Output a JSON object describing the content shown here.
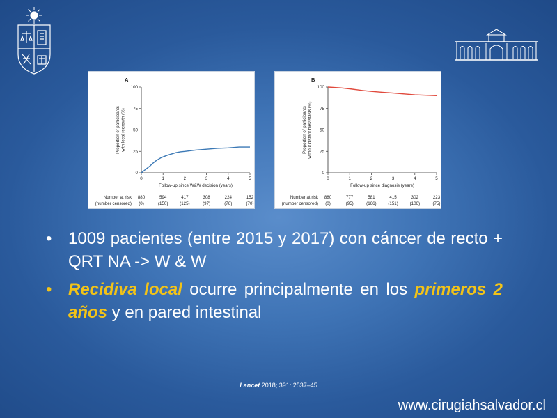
{
  "slide": {
    "bullets": [
      {
        "text": "1009 pacientes (entre 2015 y 2017) con cáncer de recto + QRT NA -> W & W"
      },
      {
        "h1": "Recidiva local",
        "t1": " ocurre principalmente en los ",
        "h2": "primeros 2 años",
        "t2": " y en pared intestinal"
      }
    ],
    "citation": {
      "journal": "Lancet",
      "rest": " 2018; 391: 2537–45"
    },
    "website": "www.cirugiahsalvador.cl",
    "bullet_char": "•"
  },
  "colors": {
    "highlight": "#f2c318",
    "line_a": "#3a78b5",
    "line_b": "#e0493c"
  },
  "chart_data": [
    {
      "type": "line",
      "panel": "A",
      "ylabel_lines": [
        "Proportion of participants",
        "with local regrowth (%)"
      ],
      "xlabel": "Follow-up since W&W decision (years)",
      "xlim": [
        0,
        5
      ],
      "ylim": [
        0,
        100
      ],
      "x_ticks": [
        0,
        1,
        2,
        3,
        4,
        5
      ],
      "y_ticks": [
        0,
        25,
        50,
        75,
        100
      ],
      "series": [
        {
          "x": [
            0,
            0.05,
            0.1,
            0.2,
            0.3,
            0.4,
            0.5,
            0.6,
            0.7,
            0.8,
            0.9,
            1.0,
            1.2,
            1.4,
            1.6,
            1.8,
            2.0,
            2.5,
            3.0,
            3.5,
            4.0,
            4.5,
            5.0
          ],
          "y": [
            0,
            1,
            2,
            4,
            6,
            8,
            10.5,
            12.5,
            14.5,
            16,
            17.5,
            18.5,
            20.5,
            22,
            23.5,
            24.5,
            25,
            26.5,
            27.5,
            28.5,
            29,
            30,
            30
          ]
        }
      ],
      "risk_table": {
        "label_lines": [
          "Number at risk",
          "(number censored)"
        ],
        "at_risk": [
          "880",
          "594",
          "417",
          "308",
          "224",
          "152"
        ],
        "censored": [
          "(0)",
          "(150)",
          "(125)",
          "(97)",
          "(76)",
          "(70)"
        ]
      }
    },
    {
      "type": "line",
      "panel": "B",
      "ylabel_lines": [
        "Proportion of participants",
        "without distant metastasis (%)"
      ],
      "xlabel": "Follow-up since diagnosis (years)",
      "xlim": [
        0,
        5
      ],
      "ylim": [
        0,
        100
      ],
      "x_ticks": [
        0,
        1,
        2,
        3,
        4,
        5
      ],
      "y_ticks": [
        0,
        25,
        50,
        75,
        100
      ],
      "series": [
        {
          "x": [
            0,
            0.3,
            0.6,
            1.0,
            1.3,
            1.6,
            2.0,
            2.5,
            3.0,
            3.5,
            4.0,
            4.5,
            5.0
          ],
          "y": [
            100,
            99.5,
            99,
            98,
            97,
            96,
            95,
            94,
            93,
            92,
            91,
            90.5,
            90
          ]
        }
      ],
      "risk_table": {
        "label_lines": [
          "Number at risk",
          "(number censored)"
        ],
        "at_risk": [
          "880",
          "777",
          "581",
          "415",
          "302",
          "223"
        ],
        "censored": [
          "(0)",
          "(95)",
          "(166)",
          "(151)",
          "(106)",
          "(75)"
        ]
      }
    }
  ]
}
